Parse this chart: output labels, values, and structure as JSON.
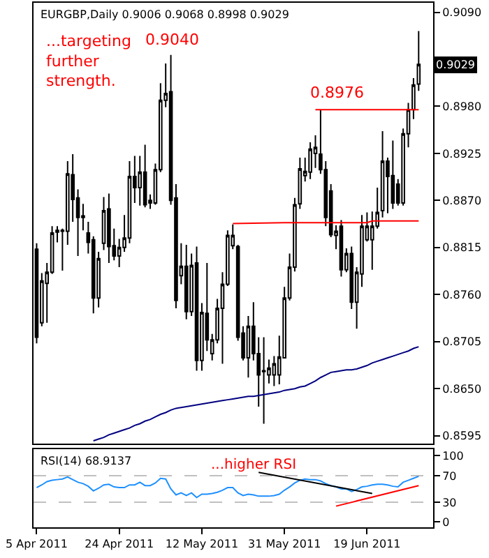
{
  "chart_data": [
    {
      "type": "candlestick",
      "title": "EURGBP,Daily 0.9006 0.9068 0.8998 0.9029",
      "color": "#000000",
      "categories": [
        null,
        null,
        null,
        null,
        null,
        null,
        null,
        null,
        null,
        null,
        null,
        null,
        null,
        null,
        null,
        null,
        null,
        null,
        null,
        null,
        null,
        null,
        null,
        null,
        null,
        null,
        null,
        null,
        null,
        null,
        null,
        null,
        null,
        null,
        null,
        null,
        null,
        null,
        null,
        null,
        null,
        null,
        null,
        null,
        null,
        null,
        null,
        null,
        null,
        null,
        null,
        null,
        null,
        null,
        null,
        null,
        null,
        null,
        null,
        null,
        null,
        null,
        null,
        null,
        null,
        null,
        null,
        null,
        null,
        null,
        null,
        null,
        null,
        null,
        null
      ],
      "ohlc": [
        [
          0.8813,
          0.882,
          0.8703,
          0.871
        ],
        [
          0.8727,
          0.8785,
          0.8723,
          0.8776
        ],
        [
          0.8773,
          0.8797,
          0.8727,
          0.8786
        ],
        [
          0.8786,
          0.884,
          0.8784,
          0.8832
        ],
        [
          0.8833,
          0.884,
          0.8821,
          0.8835
        ],
        [
          0.8834,
          0.8837,
          0.8788,
          0.8835
        ],
        [
          0.8834,
          0.8916,
          0.8818,
          0.8901
        ],
        [
          0.89,
          0.8924,
          0.8845,
          0.8871
        ],
        [
          0.8873,
          0.8883,
          0.8805,
          0.885
        ],
        [
          0.8852,
          0.8866,
          0.8835,
          0.885
        ],
        [
          0.8832,
          0.8845,
          0.8808,
          0.8821
        ],
        [
          0.8824,
          0.8828,
          0.8738,
          0.8756
        ],
        [
          0.8756,
          0.881,
          0.8745,
          0.8802
        ],
        [
          0.882,
          0.8874,
          0.8812,
          0.8858
        ],
        [
          0.886,
          0.8878,
          0.8797,
          0.8816
        ],
        [
          0.8817,
          0.8837,
          0.88,
          0.8805
        ],
        [
          0.8805,
          0.8825,
          0.8792,
          0.8815
        ],
        [
          0.8815,
          0.8853,
          0.881,
          0.8826
        ],
        [
          0.8826,
          0.8916,
          0.882,
          0.8898
        ],
        [
          0.8898,
          0.8922,
          0.8867,
          0.8885
        ],
        [
          0.8885,
          0.8922,
          0.8864,
          0.8903
        ],
        [
          0.8903,
          0.8935,
          0.8862,
          0.8865
        ],
        [
          0.8867,
          0.8877,
          0.886,
          0.887
        ],
        [
          0.8867,
          0.8913,
          0.8865,
          0.8906
        ],
        [
          0.8906,
          0.9007,
          0.8903,
          0.8987
        ],
        [
          0.8987,
          0.903,
          0.8979,
          0.8995
        ],
        [
          0.8997,
          0.904,
          0.8865,
          0.887
        ],
        [
          0.8873,
          0.8889,
          0.8744,
          0.8753
        ],
        [
          0.8782,
          0.882,
          0.8772,
          0.8793
        ],
        [
          0.8793,
          0.8818,
          0.8731,
          0.874
        ],
        [
          0.874,
          0.8808,
          0.8735,
          0.8794
        ],
        [
          0.8797,
          0.8816,
          0.8671,
          0.8683
        ],
        [
          0.8683,
          0.875,
          0.8671,
          0.8739
        ],
        [
          0.8738,
          0.8797,
          0.8694,
          0.8707
        ],
        [
          0.8691,
          0.8714,
          0.8683,
          0.8707
        ],
        [
          0.8707,
          0.8755,
          0.8703,
          0.8744
        ],
        [
          0.8744,
          0.8786,
          0.8679,
          0.8772
        ],
        [
          0.8772,
          0.8835,
          0.877,
          0.8829
        ],
        [
          0.8817,
          0.8842,
          0.8813,
          0.8829
        ],
        [
          0.8816,
          0.8818,
          0.8706,
          0.871
        ],
        [
          0.8715,
          0.8723,
          0.8683,
          0.8686
        ],
        [
          0.8686,
          0.8735,
          0.8663,
          0.8723
        ],
        [
          0.8723,
          0.8751,
          0.8683,
          0.8691
        ],
        [
          0.8691,
          0.871,
          0.8629,
          0.8666
        ],
        [
          0.8671,
          0.871,
          0.8609,
          0.867
        ],
        [
          0.8666,
          0.8684,
          0.8656,
          0.8674
        ],
        [
          0.8666,
          0.8688,
          0.8653,
          0.8679
        ],
        [
          0.8666,
          0.8712,
          0.8655,
          0.8687
        ],
        [
          0.8686,
          0.8769,
          0.8686,
          0.8756
        ],
        [
          0.8756,
          0.8808,
          0.8753,
          0.8792
        ],
        [
          0.8792,
          0.8873,
          0.8787,
          0.8865
        ],
        [
          0.8866,
          0.892,
          0.886,
          0.8907
        ],
        [
          0.8899,
          0.892,
          0.8892,
          0.8904
        ],
        [
          0.8903,
          0.8938,
          0.8895,
          0.893
        ],
        [
          0.8925,
          0.8946,
          0.8908,
          0.8932
        ],
        [
          0.8924,
          0.8976,
          0.8901,
          0.8906
        ],
        [
          0.8906,
          0.8916,
          0.884,
          0.885
        ],
        [
          0.8881,
          0.8889,
          0.8827,
          0.883
        ],
        [
          0.8829,
          0.8841,
          0.8813,
          0.8834
        ],
        [
          0.884,
          0.8847,
          0.8781,
          0.8789
        ],
        [
          0.8789,
          0.8814,
          0.8786,
          0.8808
        ],
        [
          0.8808,
          0.8816,
          0.8743,
          0.8751
        ],
        [
          0.8751,
          0.8792,
          0.872,
          0.8786
        ],
        [
          0.8784,
          0.8853,
          0.8769,
          0.884
        ],
        [
          0.8824,
          0.8856,
          0.8822,
          0.884
        ],
        [
          0.8824,
          0.8857,
          0.8789,
          0.884
        ],
        [
          0.884,
          0.8885,
          0.8837,
          0.8856
        ],
        [
          0.8858,
          0.8951,
          0.885,
          0.8916
        ],
        [
          0.8916,
          0.892,
          0.8855,
          0.8898
        ],
        [
          0.8899,
          0.894,
          0.886,
          0.8867
        ],
        [
          0.8889,
          0.8895,
          0.8864,
          0.8867
        ],
        [
          0.8867,
          0.8954,
          0.8864,
          0.8948
        ],
        [
          0.8948,
          0.8984,
          0.8932,
          0.8976
        ],
        [
          0.8976,
          0.9013,
          0.8965,
          0.9005
        ],
        [
          0.9006,
          0.9068,
          0.8998,
          0.9029
        ]
      ],
      "series": [
        {
          "type": "line",
          "color": "#000080",
          "values": [
            null,
            null,
            null,
            null,
            null,
            null,
            null,
            null,
            null,
            null,
            null,
            0.8589,
            0.8591,
            0.8593,
            0.8596,
            0.8598,
            0.86,
            0.8602,
            0.8604,
            0.8607,
            0.8609,
            0.8612,
            0.8614,
            0.8617,
            0.862,
            0.8622,
            0.8625,
            0.8627,
            0.8628,
            0.8629,
            0.863,
            0.8631,
            0.8632,
            0.8633,
            0.8634,
            0.8635,
            0.8636,
            0.8637,
            0.8638,
            0.8639,
            0.864,
            0.8641,
            0.8641,
            0.8642,
            0.8643,
            0.8644,
            0.8645,
            0.8646,
            0.8648,
            0.8649,
            0.865,
            0.8652,
            0.8653,
            0.8656,
            0.8659,
            0.8663,
            0.8666,
            0.8669,
            0.867,
            0.8671,
            0.8672,
            0.8672,
            0.8673,
            0.8675,
            0.8677,
            0.868,
            0.8682,
            0.8684,
            0.8686,
            0.8688,
            0.869,
            0.8692,
            0.8694,
            0.8697,
            0.8699
          ]
        },
        {
          "type": "line",
          "color": "#ff0000",
          "values": [
            null,
            null,
            null,
            null,
            null,
            null,
            null,
            null,
            null,
            null,
            null,
            null,
            null,
            null,
            null,
            null,
            null,
            null,
            null,
            null,
            null,
            null,
            null,
            null,
            null,
            null,
            null,
            null,
            null,
            null,
            null,
            null,
            null,
            null,
            null,
            null,
            null,
            null,
            null,
            null,
            null,
            null,
            null,
            null,
            null,
            null,
            null,
            null,
            null,
            null,
            null,
            null,
            null,
            null,
            0.8976,
            null,
            null,
            null,
            null,
            null,
            null,
            null,
            null,
            null,
            null,
            null,
            null,
            null,
            null,
            null,
            null,
            null,
            null,
            null,
            0.8976
          ]
        },
        {
          "type": "line",
          "color": "#ff0000",
          "values": [
            null,
            null,
            null,
            null,
            null,
            null,
            null,
            null,
            null,
            null,
            null,
            null,
            null,
            null,
            null,
            null,
            null,
            null,
            null,
            null,
            null,
            null,
            null,
            null,
            null,
            null,
            null,
            null,
            null,
            null,
            null,
            null,
            null,
            null,
            null,
            null,
            null,
            null,
            0.8843,
            null,
            null,
            null,
            null,
            null,
            null,
            null,
            null,
            null,
            0.8844,
            null,
            null,
            null,
            null,
            null,
            null,
            null,
            null,
            null,
            null,
            null,
            null,
            null,
            null,
            null,
            0.8844,
            0.8846,
            null,
            null,
            null,
            null,
            null,
            null,
            null,
            null,
            0.8846
          ]
        }
      ],
      "ylim": [
        0.8586,
        0.9101
      ],
      "yticks": [
        {
          "value": 0.909,
          "label": "0.9090"
        },
        {
          "value": 0.898,
          "label": "0.8980"
        },
        0.8925,
        {
          "value": 0.887,
          "label": "0.8870"
        },
        0.8815,
        {
          "value": 0.876,
          "label": "0.8760"
        },
        0.8705,
        {
          "value": 0.865,
          "label": "0.8650"
        },
        0.8595
      ],
      "tick_labels": "y",
      "annotations": [
        {
          "text": "0.9040",
          "y": 0.904
        },
        {
          "text": "0.8976",
          "y": 0.8976
        },
        "...targeting further strength.",
        {
          "text": "0.9029",
          "y": 0.9029
        }
      ]
    },
    {
      "type": "line",
      "title": "RSI(14) 68.9137",
      "categories": [
        "5 Apr 2011",
        null,
        null,
        null,
        null,
        null,
        null,
        null,
        null,
        null,
        null,
        null,
        null,
        null,
        null,
        null,
        "24 Apr 2011",
        null,
        null,
        null,
        null,
        null,
        null,
        null,
        null,
        null,
        null,
        null,
        null,
        null,
        null,
        null,
        "12 May 2011",
        null,
        null,
        null,
        null,
        null,
        null,
        null,
        null,
        null,
        null,
        null,
        null,
        null,
        null,
        null,
        "31 May 2011",
        null,
        null,
        null,
        null,
        null,
        null,
        null,
        null,
        null,
        null,
        null,
        null,
        null,
        null,
        null,
        "19 Jun 2011",
        null,
        null,
        null,
        null,
        null,
        null,
        null,
        null,
        null,
        null
      ],
      "series": [
        {
          "color": "#1e90ff",
          "values": [
            52,
            56,
            61,
            63,
            64,
            65,
            68,
            64,
            60,
            58,
            54,
            47,
            51,
            56,
            57,
            53,
            52,
            52,
            56,
            56,
            60,
            55,
            55,
            59,
            66,
            65,
            50,
            41,
            44,
            40,
            44,
            37,
            42,
            42,
            43,
            45,
            48,
            52,
            52,
            44,
            40,
            42,
            41,
            39,
            39,
            39,
            40,
            42,
            48,
            53,
            59,
            63,
            65,
            64,
            64,
            62,
            58,
            55,
            53,
            50,
            50,
            46,
            49,
            53,
            54,
            56,
            57,
            57,
            56,
            54,
            53,
            60,
            63,
            66,
            69
          ]
        },
        {
          "color": "#000000",
          "values": [
            null,
            null,
            null,
            null,
            null,
            null,
            null,
            null,
            null,
            null,
            null,
            null,
            null,
            null,
            null,
            null,
            null,
            null,
            null,
            null,
            null,
            null,
            null,
            null,
            null,
            null,
            null,
            null,
            null,
            null,
            null,
            null,
            null,
            null,
            null,
            null,
            null,
            null,
            null,
            null,
            null,
            null,
            null,
            75,
            null,
            null,
            null,
            null,
            null,
            null,
            null,
            null,
            null,
            null,
            null,
            null,
            null,
            null,
            null,
            null,
            null,
            null,
            null,
            null,
            null,
            43,
            null,
            null,
            null,
            null,
            null,
            null,
            null,
            null,
            null
          ]
        },
        {
          "color": "#ff0000",
          "values": [
            null,
            null,
            null,
            null,
            null,
            null,
            null,
            null,
            null,
            null,
            null,
            null,
            null,
            null,
            null,
            null,
            null,
            null,
            null,
            null,
            null,
            null,
            null,
            null,
            null,
            null,
            null,
            null,
            null,
            null,
            null,
            null,
            null,
            null,
            null,
            null,
            null,
            null,
            null,
            null,
            null,
            null,
            null,
            null,
            null,
            null,
            null,
            null,
            null,
            null,
            null,
            null,
            null,
            null,
            null,
            null,
            null,
            null,
            24,
            null,
            null,
            null,
            null,
            null,
            null,
            null,
            null,
            null,
            null,
            null,
            null,
            null,
            null,
            null,
            55
          ]
        }
      ],
      "ylim": [
        -8,
        110
      ],
      "yticks": [
        0,
        30,
        70,
        100
      ],
      "ref_lines": [
        {
          "axis": "y",
          "value": 70,
          "color": "#c0c0c0",
          "line_style": "dashed"
        },
        {
          "axis": "y",
          "value": 30,
          "color": "#c0c0c0",
          "line_style": "dashed"
        }
      ],
      "annotations": [
        "...higher RSI"
      ]
    }
  ]
}
